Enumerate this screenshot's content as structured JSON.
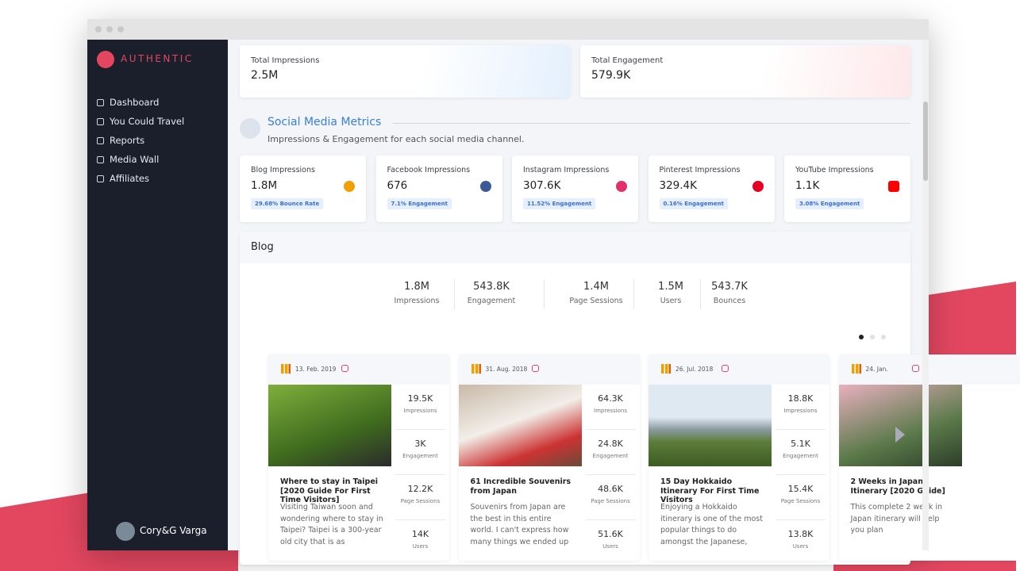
{
  "sidebar": {
    "brand": "AUTHENTIC",
    "nav": [
      "Dashboard",
      "You Could Travel",
      "Reports",
      "Media Wall",
      "Affiliates"
    ],
    "user": "Cory&G Varga"
  },
  "totals": [
    {
      "label": "Total Impressions",
      "value": "2.5M"
    },
    {
      "label": "Total Engagement",
      "value": "579.9K"
    }
  ],
  "section": {
    "title": "Social Media Metrics",
    "subtitle": "Impressions & Engagement for each social media channel."
  },
  "channels": [
    {
      "label": "Blog Impressions",
      "value": "1.8M",
      "badge": "29.68% Bounce Rate"
    },
    {
      "label": "Facebook Impressions",
      "value": "676",
      "badge": "7.1% Engagement"
    },
    {
      "label": "Instagram Impressions",
      "value": "307.6K",
      "badge": "11.52% Engagement"
    },
    {
      "label": "Pinterest Impressions",
      "value": "329.4K",
      "badge": "0.16% Engagement"
    },
    {
      "label": "YouTube Impressions",
      "value": "1.1K",
      "badge": "3.08% Engagement"
    }
  ],
  "blog": {
    "title": "Blog",
    "stats": [
      {
        "value": "1.8M",
        "label": "Impressions"
      },
      {
        "value": "543.8K",
        "label": "Engagement"
      },
      {
        "value": "1.4M",
        "label": "Page Sessions"
      },
      {
        "value": "1.5M",
        "label": "Users"
      },
      {
        "value": "543.7K",
        "label": "Bounces"
      }
    ],
    "posts": [
      {
        "date": "13. Feb. 2019",
        "title": "Where to stay in Taipei [2020 Guide For First Time Visitors]",
        "excerpt": "Visiting Taiwan soon and wondering where to stay in Taipei? Taipei is a 300-year old city that is as",
        "metrics": [
          {
            "value": "19.5K",
            "label": "Impressions"
          },
          {
            "value": "3K",
            "label": "Engagement"
          },
          {
            "value": "12.2K",
            "label": "Page Sessions"
          },
          {
            "value": "14K",
            "label": "Users"
          }
        ]
      },
      {
        "date": "31. Aug. 2018",
        "title": "61 Incredible Souvenirs from Japan",
        "excerpt": "Souvenirs from Japan are the best in this entire world. I can't express how many things we ended up",
        "metrics": [
          {
            "value": "64.3K",
            "label": "Impressions"
          },
          {
            "value": "24.8K",
            "label": "Engagement"
          },
          {
            "value": "48.6K",
            "label": "Page Sessions"
          },
          {
            "value": "51.6K",
            "label": "Users"
          }
        ]
      },
      {
        "date": "26. Jul. 2018",
        "title": "15 Day Hokkaido Itinerary For First Time Visitors",
        "excerpt": "Enjoying a Hokkaido itinerary is one of the most popular things to do amongst the Japanese,",
        "metrics": [
          {
            "value": "18.8K",
            "label": "Impressions"
          },
          {
            "value": "5.1K",
            "label": "Engagement"
          },
          {
            "value": "15.4K",
            "label": "Page Sessions"
          },
          {
            "value": "13.8K",
            "label": "Users"
          }
        ]
      },
      {
        "date": "24. Jan.",
        "title": "2 Weeks in Japan Itinerary [2020 Guide]",
        "excerpt": "This complete 2 week in Japan itinerary will help you plan",
        "metrics": []
      }
    ]
  }
}
